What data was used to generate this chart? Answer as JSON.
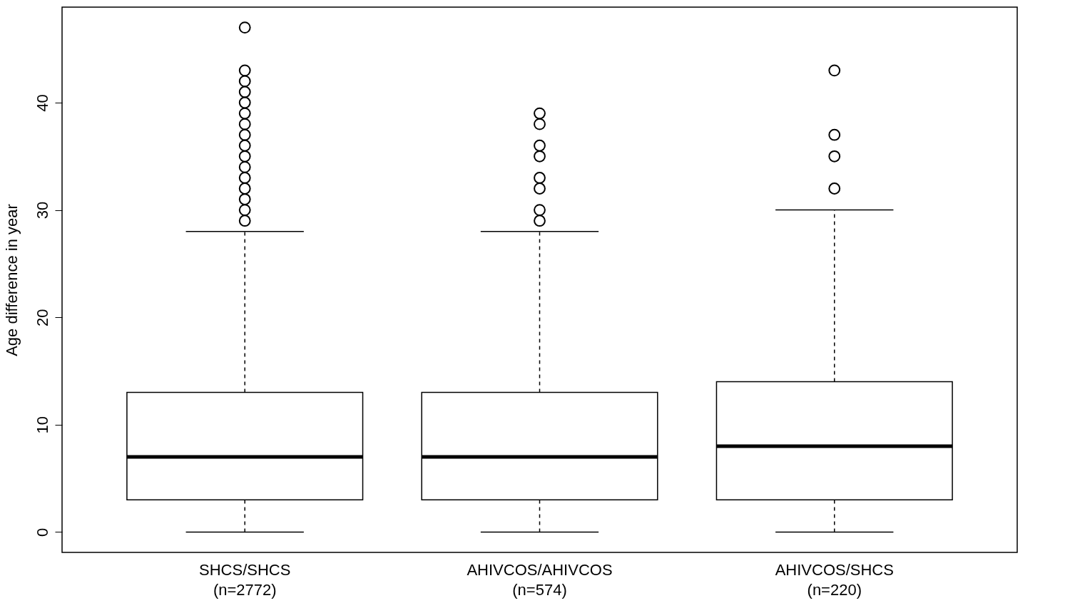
{
  "chart_data": {
    "type": "box",
    "ylabel": "Age difference in year",
    "categories": [
      "SHCS/SHCS\n(n=2772)",
      "AHIVCOS/AHIVCOS\n(n=574)",
      "AHIVCOS/SHCS\n(n=220)"
    ],
    "boxes": [
      {
        "low": 0,
        "q1": 3,
        "median": 7,
        "q3": 13,
        "high": 28,
        "outliers": [
          29,
          30,
          31,
          32,
          33,
          34,
          35,
          36,
          37,
          38,
          39,
          40,
          41,
          42,
          43,
          47
        ]
      },
      {
        "low": 0,
        "q1": 3,
        "median": 7,
        "q3": 13,
        "high": 28,
        "outliers": [
          29,
          30,
          32,
          33,
          35,
          36,
          38,
          39
        ]
      },
      {
        "low": 0,
        "q1": 3,
        "median": 8,
        "q3": 14,
        "high": 30,
        "outliers": [
          32,
          35,
          37,
          43
        ]
      }
    ],
    "ylim": [
      -1.9,
      48.9
    ],
    "yticks": [
      0,
      10,
      20,
      30,
      40
    ],
    "grid": false,
    "marker": "circle"
  }
}
